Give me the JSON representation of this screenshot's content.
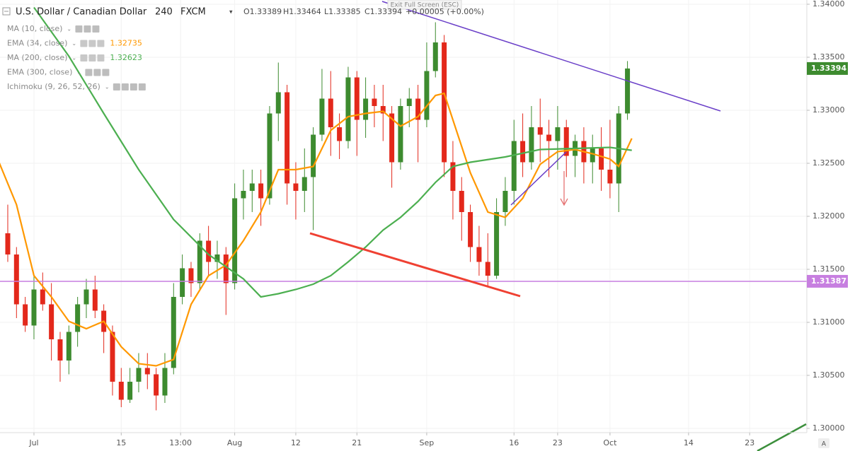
{
  "chart_data": {
    "type": "candlestick",
    "header": {
      "symbol": "U.S. Dollar / Canadian Dollar",
      "interval": "240",
      "source": "FXCM",
      "ohlc": [
        "O1.33389",
        "H1.33464",
        "L1.33385",
        "C1.33394"
      ],
      "change": "+0.00005 (+0.00%)"
    },
    "tooltip": "Exit Full Screen (ESC)",
    "corner_label": "A",
    "up_color": "#3d8b2f",
    "down_color": "#e3281b",
    "xlim": [
      -3.89,
      88.55
    ],
    "xticks": [
      {
        "value": 0,
        "label": "Jul"
      },
      {
        "value": 10,
        "label": "15"
      },
      {
        "value": 16.8,
        "label": "13:00"
      },
      {
        "value": 23,
        "label": "Aug"
      },
      {
        "value": 30,
        "label": "12"
      },
      {
        "value": 37,
        "label": "21"
      },
      {
        "value": 45,
        "label": "Sep"
      },
      {
        "value": 55,
        "label": "16"
      },
      {
        "value": 60,
        "label": "23"
      },
      {
        "value": 66,
        "label": "Oct"
      },
      {
        "value": 75,
        "label": "14"
      },
      {
        "value": 82,
        "label": "23"
      }
    ],
    "ylim": [
      1.2996,
      1.3404
    ],
    "yticks": [
      {
        "value": 1.3,
        "label": "1.30000"
      },
      {
        "value": 1.305,
        "label": "1.30500"
      },
      {
        "value": 1.31,
        "label": "1.31000"
      },
      {
        "value": 1.315,
        "label": "1.31500"
      },
      {
        "value": 1.32,
        "label": "1.32000"
      },
      {
        "value": 1.325,
        "label": "1.32500"
      },
      {
        "value": 1.33,
        "label": "1.33000"
      },
      {
        "value": 1.335,
        "label": "1.33500"
      },
      {
        "value": 1.34,
        "label": "1.34000"
      }
    ],
    "grid": true,
    "hline": {
      "value": 1.31387,
      "color": "#c77fe0"
    },
    "candles": {
      "x": [
        -3,
        -2,
        -1,
        0,
        1,
        2,
        3,
        4,
        5,
        6,
        7,
        8,
        9,
        10,
        11,
        12,
        13,
        14,
        15,
        16,
        17,
        18,
        19,
        20,
        21,
        22,
        23,
        24,
        25,
        26,
        27,
        28,
        29,
        30,
        31,
        32,
        33,
        34,
        35,
        36,
        37,
        38,
        39,
        40,
        41,
        42,
        43,
        44,
        45,
        46,
        47,
        48,
        49,
        50,
        51,
        52,
        53,
        54,
        55,
        56,
        57,
        58,
        59,
        60,
        61,
        62,
        63,
        64,
        65,
        66,
        67,
        68
      ],
      "open": [
        1.3184,
        1.3164,
        1.3117,
        1.3097,
        1.3131,
        1.3117,
        1.3084,
        1.3064,
        1.3091,
        1.3117,
        1.3131,
        1.3111,
        1.3091,
        1.3044,
        1.3027,
        1.3044,
        1.3057,
        1.3051,
        1.3031,
        1.3057,
        1.3124,
        1.3151,
        1.3137,
        1.3177,
        1.3157,
        1.3164,
        1.3137,
        1.3217,
        1.3224,
        1.3231,
        1.3217,
        1.3297,
        1.3317,
        1.3231,
        1.3224,
        1.3237,
        1.3277,
        1.3311,
        1.3284,
        1.3271,
        1.3331,
        1.3291,
        1.3311,
        1.3304,
        1.3297,
        1.3251,
        1.3304,
        1.3311,
        1.3291,
        1.3337,
        1.3364,
        1.3251,
        1.3224,
        1.3204,
        1.3171,
        1.3157,
        1.3144,
        1.3204,
        1.3224,
        1.3271,
        1.3251,
        1.3284,
        1.3277,
        1.3271,
        1.3284,
        1.3257,
        1.3271,
        1.3251,
        1.3264,
        1.3244,
        1.3231,
        1.3297
      ],
      "high": [
        1.3211,
        1.3171,
        1.3124,
        1.3144,
        1.3147,
        1.3137,
        1.3091,
        1.3097,
        1.3124,
        1.3141,
        1.3144,
        1.3117,
        1.3097,
        1.3057,
        1.3057,
        1.3071,
        1.3071,
        1.3057,
        1.3071,
        1.3137,
        1.3164,
        1.3157,
        1.3184,
        1.3191,
        1.3177,
        1.3171,
        1.3231,
        1.3244,
        1.3244,
        1.3244,
        1.3304,
        1.3345,
        1.3324,
        1.3251,
        1.3264,
        1.3284,
        1.3339,
        1.3337,
        1.3297,
        1.3341,
        1.3337,
        1.3331,
        1.3324,
        1.3324,
        1.3304,
        1.3311,
        1.3321,
        1.3324,
        1.3364,
        1.3383,
        1.3371,
        1.3271,
        1.3237,
        1.3211,
        1.3191,
        1.3184,
        1.3217,
        1.3237,
        1.3291,
        1.3297,
        1.3304,
        1.3311,
        1.3291,
        1.3304,
        1.3291,
        1.3277,
        1.3284,
        1.3277,
        1.3284,
        1.3291,
        1.3304,
        1.33464
      ],
      "low": [
        1.3157,
        1.3104,
        1.3091,
        1.3084,
        1.3111,
        1.3064,
        1.3044,
        1.3051,
        1.3077,
        1.3104,
        1.3104,
        1.3071,
        1.3031,
        1.302,
        1.3024,
        1.3034,
        1.3037,
        1.3017,
        1.3024,
        1.3051,
        1.3117,
        1.3124,
        1.3131,
        1.3144,
        1.3141,
        1.3107,
        1.3131,
        1.3197,
        1.3204,
        1.3191,
        1.3211,
        1.3271,
        1.3211,
        1.3197,
        1.3204,
        1.3187,
        1.3271,
        1.3257,
        1.3254,
        1.3264,
        1.3257,
        1.3274,
        1.3284,
        1.3271,
        1.3227,
        1.3244,
        1.3284,
        1.3251,
        1.3284,
        1.3331,
        1.3237,
        1.3197,
        1.3177,
        1.3157,
        1.3144,
        1.3134,
        1.3141,
        1.3191,
        1.3211,
        1.3237,
        1.3244,
        1.3251,
        1.3237,
        1.3244,
        1.3237,
        1.3237,
        1.3231,
        1.3231,
        1.3224,
        1.3217,
        1.3204,
        1.3291
      ],
      "close": [
        1.3164,
        1.3117,
        1.3097,
        1.3131,
        1.3117,
        1.3084,
        1.3064,
        1.3091,
        1.3117,
        1.3131,
        1.3111,
        1.3091,
        1.3044,
        1.3027,
        1.3044,
        1.3057,
        1.3051,
        1.3031,
        1.3057,
        1.3124,
        1.3151,
        1.3137,
        1.3177,
        1.3157,
        1.3164,
        1.3137,
        1.3217,
        1.3224,
        1.3231,
        1.3217,
        1.3297,
        1.3317,
        1.3231,
        1.3224,
        1.3237,
        1.3277,
        1.3311,
        1.3284,
        1.3271,
        1.3331,
        1.3291,
        1.3311,
        1.3304,
        1.3297,
        1.3251,
        1.3304,
        1.3311,
        1.3291,
        1.3337,
        1.3364,
        1.3251,
        1.3224,
        1.3204,
        1.3171,
        1.3157,
        1.3144,
        1.3204,
        1.3224,
        1.3271,
        1.3251,
        1.3284,
        1.3277,
        1.3271,
        1.3284,
        1.3257,
        1.3271,
        1.3251,
        1.3264,
        1.3244,
        1.3231,
        1.3297,
        1.33394
      ]
    },
    "series": [
      {
        "name": "MA (10, close)"
      },
      {
        "name": "EMA (34, close)",
        "color": "#ff9800",
        "x": [
          -4,
          -2,
          0,
          2,
          4,
          6,
          8,
          10,
          12,
          14,
          16,
          18,
          20,
          22,
          24,
          26,
          28,
          30,
          32,
          34,
          36,
          38,
          40,
          42,
          44,
          46,
          47,
          48,
          50,
          52,
          54,
          56,
          58,
          60,
          62,
          64,
          66,
          67,
          68.5
        ],
        "values": [
          1.3251,
          1.3211,
          1.3144,
          1.3124,
          1.3101,
          1.3094,
          1.3101,
          1.3077,
          1.3061,
          1.3059,
          1.3065,
          1.3117,
          1.3144,
          1.3154,
          1.3177,
          1.3204,
          1.3244,
          1.3244,
          1.3247,
          1.3281,
          1.3294,
          1.3297,
          1.3299,
          1.3285,
          1.3294,
          1.3314,
          1.3316,
          1.3291,
          1.3241,
          1.3204,
          1.3199,
          1.3217,
          1.3249,
          1.3261,
          1.3263,
          1.3259,
          1.3254,
          1.3247,
          1.32735
        ]
      },
      {
        "name": "MA (200, close)",
        "color": "#4caf50",
        "x": [
          0,
          4,
          8,
          12,
          16,
          20,
          24,
          26,
          28,
          30,
          32,
          34,
          36,
          38,
          40,
          42,
          44,
          46,
          48,
          50,
          54,
          58,
          62,
          66,
          68.5
        ],
        "values": [
          1.3397,
          1.3351,
          1.3297,
          1.3244,
          1.3197,
          1.3164,
          1.3141,
          1.3124,
          1.3127,
          1.3131,
          1.3136,
          1.3144,
          1.3157,
          1.3171,
          1.3187,
          1.3199,
          1.3214,
          1.3232,
          1.3247,
          1.3251,
          1.3256,
          1.3263,
          1.3264,
          1.3265,
          1.32623
        ]
      },
      {
        "name": "EMA (300, close)"
      },
      {
        "name": "Ichimoku (9, 26, 52, 26)"
      }
    ]
  }
}
